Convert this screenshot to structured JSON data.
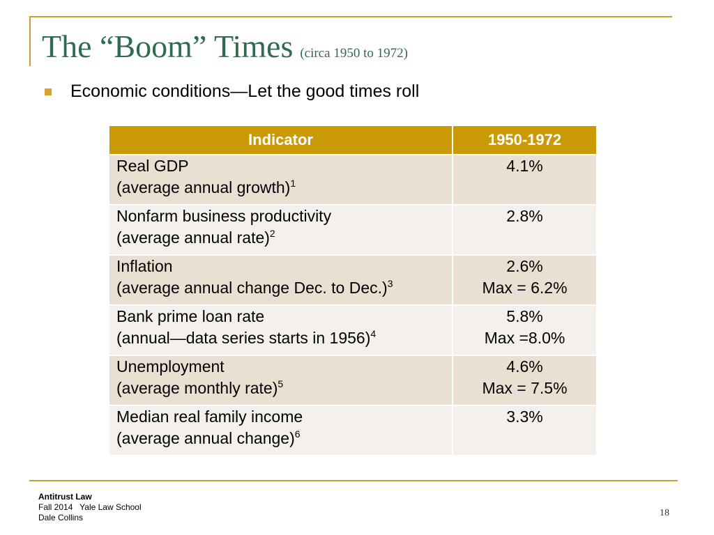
{
  "slide": {
    "title": "The “Boom” Times",
    "subtitle": "(circa 1950 to 1972)",
    "bullet": "Economic conditions—Let the good times roll",
    "accent_color": "#c99a06",
    "title_color": "#2f6b4f"
  },
  "table": {
    "headers": [
      "Indicator",
      "1950-1972"
    ],
    "rows": [
      {
        "name": "Real GDP",
        "detail": "(average annual growth)",
        "note": "1",
        "value": "4.1%",
        "max": ""
      },
      {
        "name": "Nonfarm business productivity",
        "detail": "(average annual rate)",
        "note": "2",
        "value": "2.8%",
        "max": ""
      },
      {
        "name": "Inflation",
        "detail": "(average annual change Dec. to Dec.)",
        "note": "3",
        "value": "2.6%",
        "max": "Max = 6.2%"
      },
      {
        "name": "Bank prime loan rate",
        "detail": "(annual—data series starts in 1956)",
        "note": "4",
        "value": "5.8%",
        "max": "Max =8.0%"
      },
      {
        "name": "Unemployment",
        "detail": "(average monthly rate)",
        "note": "5",
        "value": "4.6%",
        "max": "Max = 7.5%"
      },
      {
        "name": "Median real family income",
        "detail": "(average annual change)",
        "note": "6",
        "value": "3.3%",
        "max": ""
      }
    ]
  },
  "footer": {
    "course": "Antitrust Law",
    "term_school": "Fall 2014   Yale Law School",
    "author": "Dale Collins",
    "page_number": "18"
  }
}
